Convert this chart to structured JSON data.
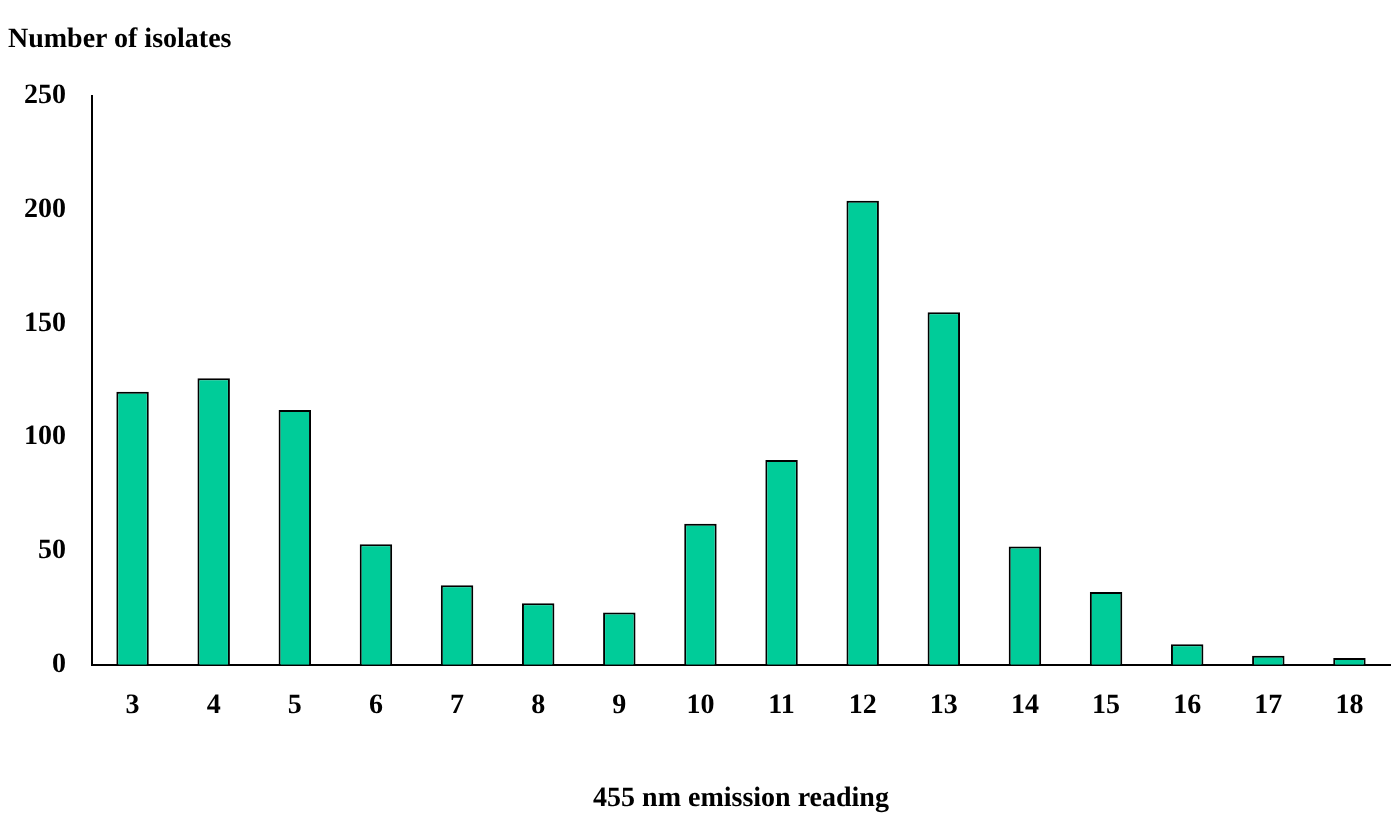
{
  "chart_data": {
    "type": "bar",
    "xlabel": "455 nm emission reading",
    "ylabel": "Number of isolates",
    "categories": [
      "3",
      "4",
      "5",
      "6",
      "7",
      "8",
      "9",
      "10",
      "11",
      "12",
      "13",
      "14",
      "15",
      "16",
      "17",
      "18"
    ],
    "values": [
      120,
      126,
      112,
      53,
      35,
      27,
      23,
      62,
      90,
      204,
      155,
      52,
      32,
      9,
      4,
      3
    ],
    "color": "#00cc99",
    "ylim": [
      0,
      250
    ],
    "yticks": [
      0,
      50,
      100,
      150,
      200,
      250
    ],
    "grid": false,
    "legend": false
  }
}
